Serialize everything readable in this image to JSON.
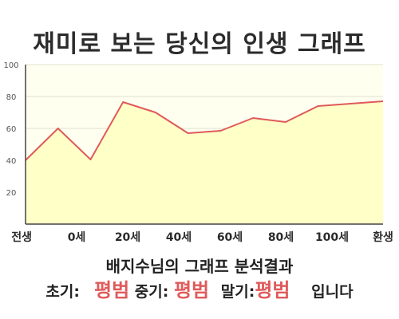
{
  "title": "재미로 보는 당신의 인생 그래프",
  "chart_data": {
    "type": "area",
    "x_labels": [
      "전생",
      "0세",
      "20세",
      "40세",
      "60세",
      "80세",
      "100세",
      "환생"
    ],
    "y_ticks": [
      20,
      40,
      60,
      80,
      100
    ],
    "ylim": [
      0,
      100
    ],
    "values": [
      40,
      60,
      40.5,
      76.5,
      70,
      57,
      58.5,
      66.5,
      64,
      74,
      75.5,
      77
    ],
    "grid": true,
    "colors": {
      "fill": "#ffffc8",
      "line": "#e05a5a",
      "plot_bg": "#fffff0"
    }
  },
  "result": {
    "title": "배지수님의 그래프 분석결과",
    "early_label": "초기:",
    "early_value": "평범",
    "middle_label": "중기:",
    "middle_value": "평범",
    "late_label": "말기:",
    "late_value": "평범",
    "suffix": "입니다"
  }
}
